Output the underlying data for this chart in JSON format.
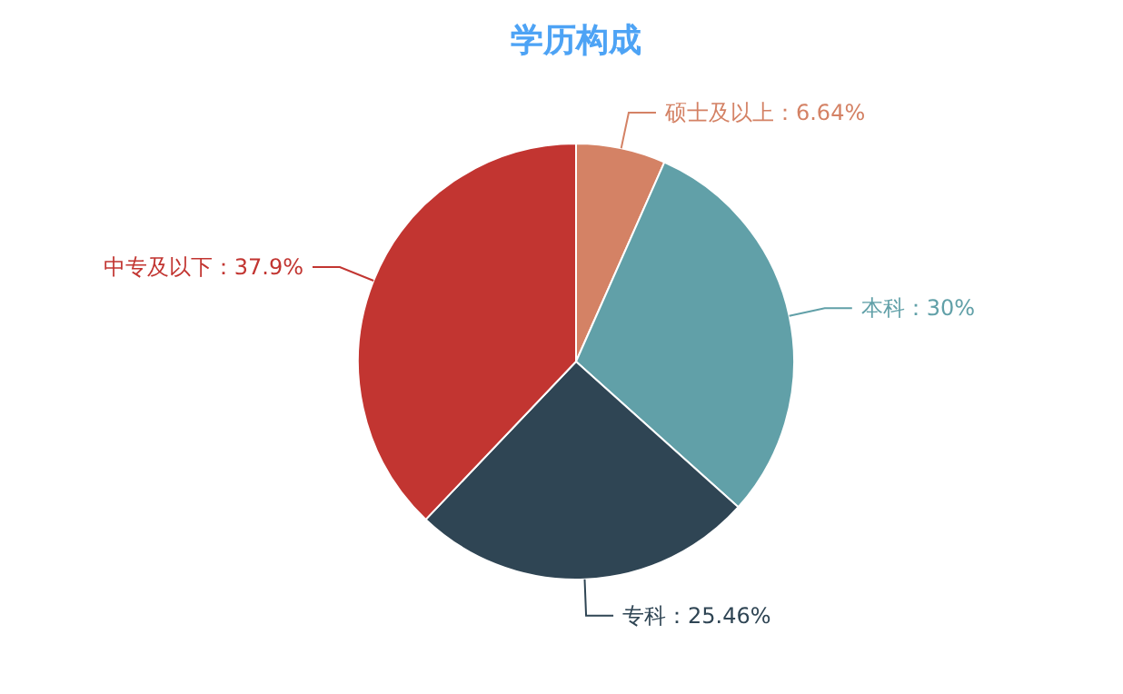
{
  "chart_data": {
    "type": "pie",
    "title": "学历构成",
    "categories": [
      "硕士及以上",
      "本科",
      "专科",
      "中专及以下"
    ],
    "values": [
      6.64,
      30,
      25.46,
      37.9
    ],
    "colors": [
      "#d48265",
      "#61a0a8",
      "#2f4554",
      "#c23531"
    ],
    "value_labels": [
      "：6.64%",
      "：30%",
      "：25.46%",
      "：37.9%"
    ]
  }
}
